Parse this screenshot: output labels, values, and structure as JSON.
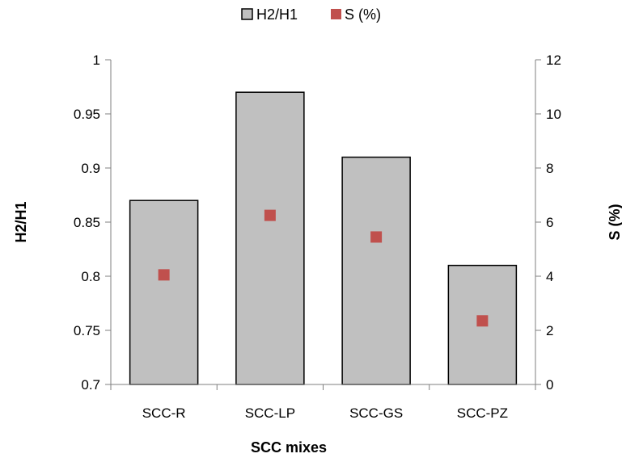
{
  "chart_data": {
    "type": "bar",
    "categories": [
      "SCC-R",
      "SCC-LP",
      "SCC-GS",
      "SCC-PZ"
    ],
    "series": [
      {
        "name": "H2/H1",
        "type": "bar",
        "axis": "left",
        "values": [
          0.87,
          0.97,
          0.91,
          0.81
        ],
        "color": "#c0c0c0"
      },
      {
        "name": "S (%)",
        "type": "scatter",
        "axis": "right",
        "values": [
          4.05,
          6.25,
          5.45,
          2.35
        ],
        "color": "#c0504d"
      }
    ],
    "xlabel": "SCC mixes",
    "ylabel": "H2/H1",
    "y2label": "S (%)",
    "ylim": [
      0.7,
      1
    ],
    "y2lim": [
      0,
      12
    ],
    "yticks": [
      "0.7",
      "0.75",
      "0.8",
      "0.85",
      "0.9",
      "0.95",
      "1"
    ],
    "y2ticks": [
      "0",
      "2",
      "4",
      "6",
      "8",
      "10",
      "12"
    ],
    "legend_position": "top",
    "grid": false
  }
}
